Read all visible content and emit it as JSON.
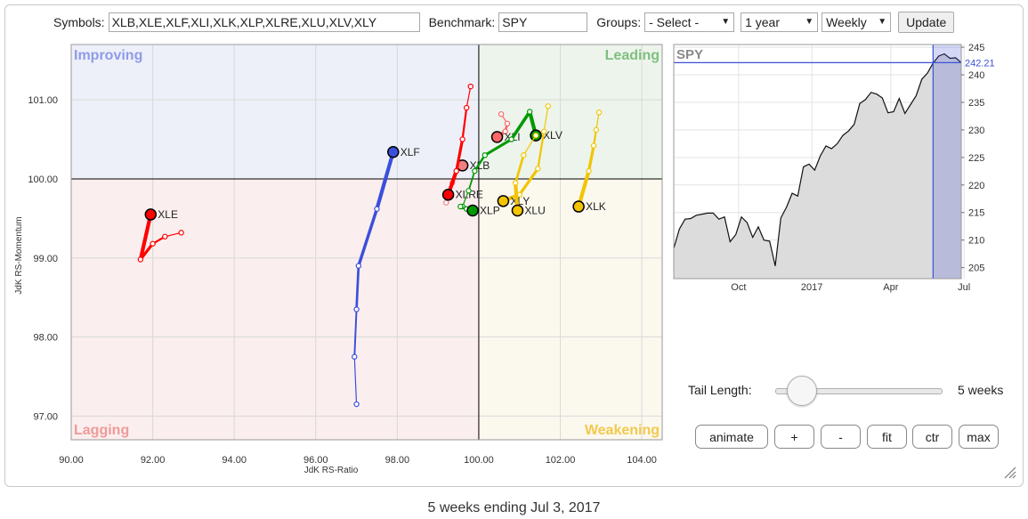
{
  "toolbar": {
    "symbols_label": "Symbols:",
    "symbols_value": "XLB,XLE,XLF,XLI,XLK,XLP,XLRE,XLU,XLV,XLY",
    "benchmark_label": "Benchmark:",
    "benchmark_value": "SPY",
    "groups_label": "Groups:",
    "groups_value": "- Select -",
    "period_value": "1 year",
    "frequency_value": "Weekly",
    "update_label": "Update"
  },
  "controls": {
    "tail_length_label": "Tail Length:",
    "tail_length_value": "5 weeks",
    "tail_length_weeks": 5,
    "animate_label": "animate",
    "plus_label": "+",
    "minus_label": "-",
    "fit_label": "fit",
    "ctr_label": "ctr",
    "max_label": "max"
  },
  "caption": "5 weeks ending Jul 3, 2017",
  "chart_data": [
    {
      "type": "scatter",
      "subtype": "relative-rotation-graph",
      "xlabel": "JdK RS-Ratio",
      "ylabel": "JdK RS-Momentum",
      "xlim": [
        90,
        104.5
      ],
      "ylim": [
        96.7,
        101.7
      ],
      "xticks": [
        90,
        92,
        94,
        96,
        98,
        100,
        102,
        104
      ],
      "yticks": [
        97,
        98,
        99,
        100,
        101
      ],
      "xtick_labels": [
        "90.00",
        "92.00",
        "94.00",
        "96.00",
        "98.00",
        "100.00",
        "102.00",
        "104.00"
      ],
      "ytick_labels": [
        "97.00",
        "98.00",
        "99.00",
        "100.00",
        "101.00"
      ],
      "center": [
        100,
        100
      ],
      "quadrants": {
        "top_left": {
          "label": "Improving",
          "bg": "#eef0f9",
          "color": "#8f9be8"
        },
        "top_right": {
          "label": "Leading",
          "bg": "#ecf4ec",
          "color": "#7fbf7f"
        },
        "bottom_left": {
          "label": "Lagging",
          "bg": "#fbeeee",
          "color": "#ef9a9a"
        },
        "bottom_right": {
          "label": "Weakening",
          "bg": "#fbf8ee",
          "color": "#f2c94c"
        }
      },
      "grid": true,
      "series": [
        {
          "name": "XLE",
          "color": "#ff0000",
          "points": [
            [
              92.7,
              99.32
            ],
            [
              92.3,
              99.27
            ],
            [
              92.0,
              99.18
            ],
            [
              91.7,
              98.98
            ],
            [
              91.95,
              99.55
            ]
          ]
        },
        {
          "name": "XLF",
          "color": "#3b4fdc",
          "points": [
            [
              97.0,
              97.15
            ],
            [
              96.95,
              97.75
            ],
            [
              97.0,
              98.35
            ],
            [
              97.05,
              98.9
            ],
            [
              97.5,
              99.62
            ],
            [
              97.9,
              100.34
            ]
          ]
        },
        {
          "name": "XLB",
          "color": "#f08080",
          "points": [
            [
              99.2,
              99.7
            ],
            [
              99.35,
              99.95
            ],
            [
              99.45,
              100.1
            ],
            [
              99.6,
              100.17
            ]
          ]
        },
        {
          "name": "XLRE",
          "color": "#ff0000",
          "points": [
            [
              99.8,
              101.17
            ],
            [
              99.7,
              100.9
            ],
            [
              99.6,
              100.5
            ],
            [
              99.45,
              100.1
            ],
            [
              99.25,
              99.8
            ]
          ]
        },
        {
          "name": "XLI",
          "color": "#ff6666",
          "points": [
            [
              100.55,
              100.82
            ],
            [
              100.7,
              100.7
            ],
            [
              100.65,
              100.6
            ],
            [
              100.45,
              100.53
            ]
          ]
        },
        {
          "name": "XLV",
          "color": "#009900",
          "points": [
            [
              99.6,
              99.65
            ],
            [
              99.75,
              99.85
            ],
            [
              99.9,
              100.1
            ],
            [
              100.15,
              100.3
            ],
            [
              100.8,
              100.5
            ],
            [
              101.25,
              100.85
            ],
            [
              101.4,
              100.55
            ]
          ]
        },
        {
          "name": "XLP",
          "color": "#009900",
          "points": [
            [
              99.55,
              99.65
            ],
            [
              99.7,
              99.62
            ],
            [
              99.85,
              99.6
            ]
          ]
        },
        {
          "name": "XLY",
          "color": "#f2c500",
          "points": [
            [
              101.7,
              100.92
            ],
            [
              101.6,
              100.6
            ],
            [
              101.45,
              100.13
            ],
            [
              101.0,
              99.8
            ],
            [
              100.6,
              99.72
            ]
          ]
        },
        {
          "name": "XLU",
          "color": "#f2c500",
          "points": [
            [
              101.4,
              100.55
            ],
            [
              101.1,
              100.3
            ],
            [
              100.9,
              99.95
            ],
            [
              100.95,
              99.6
            ]
          ]
        },
        {
          "name": "XLK",
          "color": "#f2c500",
          "points": [
            [
              102.95,
              100.84
            ],
            [
              102.88,
              100.62
            ],
            [
              102.82,
              100.42
            ],
            [
              102.7,
              100.1
            ],
            [
              102.45,
              99.65
            ]
          ]
        }
      ]
    },
    {
      "type": "area",
      "title": "SPY",
      "last_value": 242.21,
      "last_value_label": "242.21",
      "ylim": [
        203,
        245.5
      ],
      "yticks": [
        205,
        210,
        215,
        220,
        225,
        230,
        235,
        240,
        245
      ],
      "ytick_labels": [
        "205",
        "210",
        "215",
        "220",
        "225",
        "230",
        "235",
        "240",
        "245"
      ],
      "xticks": [
        "Oct",
        "2017",
        "Apr",
        "Jul"
      ],
      "xtick_positions": [
        11.5,
        24.5,
        38.5,
        51.5
      ],
      "values": [
        208.5,
        212,
        213.8,
        213.9,
        214.5,
        214.7,
        214.9,
        214.9,
        213.8,
        214.2,
        209.7,
        211,
        214.2,
        213.2,
        210.5,
        212.4,
        210,
        209.8,
        205.3,
        214,
        216,
        218.5,
        218,
        223.3,
        223.8,
        222.7,
        225.3,
        227.1,
        226.6,
        227.5,
        229,
        229.8,
        231,
        234.8,
        235.5,
        236.8,
        236.5,
        235.8,
        233.1,
        233.3,
        235.7,
        233,
        234.6,
        236.2,
        239.2,
        240.3,
        242.1,
        243.4,
        243.8,
        243,
        243.1,
        242.2
      ],
      "highlight_last_n": 5,
      "grid": true
    }
  ]
}
